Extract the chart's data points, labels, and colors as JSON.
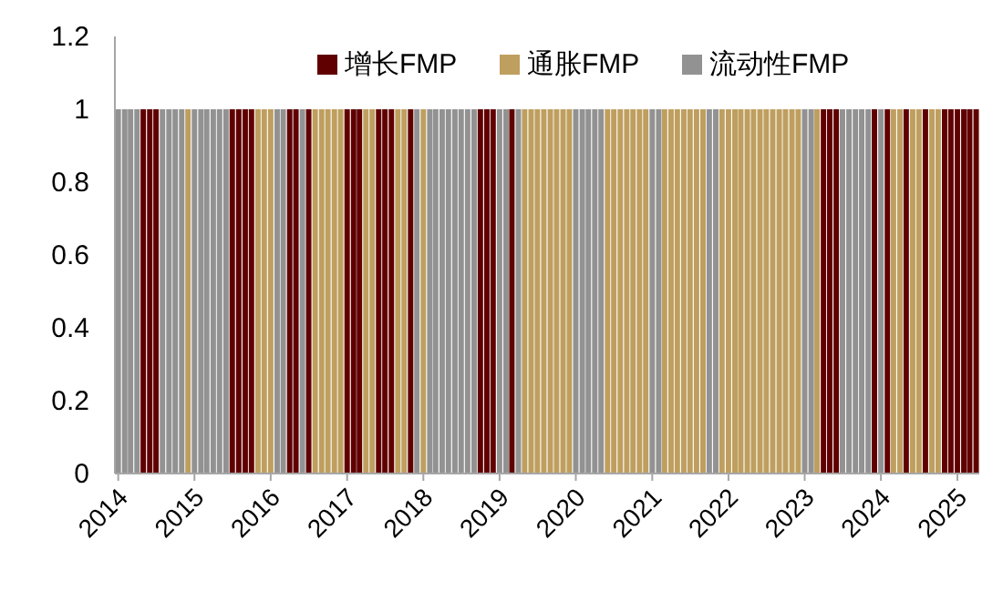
{
  "chart_data": {
    "type": "bar",
    "legend": "top",
    "x": [
      "2014-01",
      "2014-02",
      "2014-03",
      "2014-04",
      "2014-05",
      "2014-06",
      "2014-07",
      "2014-08",
      "2014-09",
      "2014-10",
      "2014-11",
      "2014-12",
      "2015-01",
      "2015-02",
      "2015-03",
      "2015-04",
      "2015-05",
      "2015-06",
      "2015-07",
      "2015-08",
      "2015-09",
      "2015-10",
      "2015-11",
      "2015-12",
      "2016-01",
      "2016-02",
      "2016-03",
      "2016-04",
      "2016-05",
      "2016-06",
      "2016-07",
      "2016-08",
      "2016-09",
      "2016-10",
      "2016-11",
      "2016-12",
      "2017-01",
      "2017-02",
      "2017-03",
      "2017-04",
      "2017-05",
      "2017-06",
      "2017-07",
      "2017-08",
      "2017-09",
      "2017-10",
      "2017-11",
      "2017-12",
      "2018-01",
      "2018-02",
      "2018-03",
      "2018-04",
      "2018-05",
      "2018-06",
      "2018-07",
      "2018-08",
      "2018-09",
      "2018-10",
      "2018-11",
      "2018-12",
      "2019-01",
      "2019-02",
      "2019-03",
      "2019-04",
      "2019-05",
      "2019-06",
      "2019-07",
      "2019-08",
      "2019-09",
      "2019-10",
      "2019-11",
      "2019-12",
      "2020-01",
      "2020-02",
      "2020-03",
      "2020-04",
      "2020-05",
      "2020-06",
      "2020-07",
      "2020-08",
      "2020-09",
      "2020-10",
      "2020-11",
      "2020-12",
      "2021-01",
      "2021-02",
      "2021-03",
      "2021-04",
      "2021-05",
      "2021-06",
      "2021-07",
      "2021-08",
      "2021-09",
      "2021-10",
      "2021-11",
      "2021-12",
      "2022-01",
      "2022-02",
      "2022-03",
      "2022-04",
      "2022-05",
      "2022-06",
      "2022-07",
      "2022-08",
      "2022-09",
      "2022-10",
      "2022-11",
      "2022-12",
      "2023-01",
      "2023-02",
      "2023-03",
      "2023-04",
      "2023-05",
      "2023-06",
      "2023-07",
      "2023-08",
      "2023-09",
      "2023-10",
      "2023-11",
      "2023-12",
      "2024-01",
      "2024-02",
      "2024-03",
      "2024-04",
      "2024-05",
      "2024-06",
      "2024-07",
      "2024-08",
      "2024-09",
      "2024-10",
      "2024-11",
      "2024-12",
      "2025-01",
      "2025-02",
      "2025-03",
      "2025-04"
    ],
    "series": [
      {
        "name": "增长FMP",
        "color": "#600000",
        "values": [
          null,
          null,
          null,
          null,
          1,
          1,
          1,
          null,
          null,
          null,
          null,
          null,
          null,
          null,
          null,
          null,
          null,
          null,
          1,
          1,
          1,
          1,
          null,
          null,
          null,
          null,
          null,
          1,
          1,
          null,
          1,
          null,
          null,
          null,
          null,
          null,
          1,
          1,
          1,
          null,
          null,
          1,
          1,
          1,
          null,
          null,
          1,
          null,
          null,
          null,
          null,
          null,
          null,
          null,
          null,
          null,
          null,
          1,
          1,
          1,
          null,
          null,
          1,
          null,
          null,
          null,
          null,
          null,
          null,
          null,
          null,
          null,
          null,
          null,
          null,
          null,
          null,
          null,
          null,
          null,
          null,
          null,
          null,
          null,
          null,
          null,
          null,
          null,
          null,
          null,
          null,
          null,
          null,
          null,
          null,
          null,
          null,
          null,
          null,
          null,
          null,
          null,
          null,
          null,
          null,
          null,
          null,
          null,
          null,
          null,
          null,
          1,
          1,
          1,
          null,
          null,
          null,
          null,
          null,
          1,
          null,
          1,
          null,
          null,
          1,
          null,
          null,
          1,
          null,
          null,
          1,
          1,
          1,
          1,
          1,
          1
        ]
      },
      {
        "name": "通胀FMP",
        "color": "#bf9f5f",
        "values": [
          null,
          null,
          null,
          null,
          null,
          null,
          null,
          null,
          null,
          null,
          null,
          1,
          null,
          null,
          null,
          null,
          null,
          null,
          null,
          null,
          null,
          null,
          1,
          1,
          1,
          null,
          null,
          null,
          null,
          null,
          null,
          1,
          1,
          1,
          1,
          1,
          null,
          null,
          null,
          1,
          1,
          null,
          null,
          null,
          1,
          1,
          null,
          null,
          1,
          null,
          null,
          null,
          null,
          null,
          null,
          null,
          null,
          null,
          null,
          null,
          null,
          null,
          null,
          null,
          1,
          1,
          1,
          1,
          1,
          1,
          1,
          1,
          null,
          null,
          null,
          null,
          null,
          1,
          1,
          1,
          1,
          1,
          1,
          1,
          null,
          null,
          1,
          1,
          1,
          1,
          1,
          1,
          1,
          null,
          null,
          1,
          1,
          1,
          1,
          1,
          1,
          1,
          1,
          1,
          1,
          1,
          1,
          1,
          null,
          null,
          1,
          null,
          null,
          null,
          null,
          null,
          null,
          null,
          null,
          null,
          null,
          null,
          1,
          1,
          null,
          1,
          1,
          null,
          1,
          1,
          null,
          null,
          null,
          null,
          null,
          null
        ]
      },
      {
        "name": "流动性FMP",
        "color": "#929292",
        "values": [
          1,
          1,
          1,
          1,
          null,
          null,
          null,
          1,
          1,
          1,
          1,
          null,
          1,
          1,
          1,
          1,
          1,
          1,
          null,
          null,
          null,
          null,
          null,
          null,
          null,
          1,
          1,
          null,
          null,
          1,
          null,
          null,
          null,
          null,
          null,
          null,
          null,
          null,
          null,
          null,
          null,
          null,
          null,
          null,
          null,
          null,
          null,
          1,
          null,
          1,
          1,
          1,
          1,
          1,
          1,
          1,
          1,
          null,
          null,
          null,
          1,
          1,
          null,
          1,
          null,
          null,
          null,
          null,
          null,
          null,
          null,
          null,
          1,
          1,
          1,
          1,
          1,
          null,
          null,
          null,
          null,
          null,
          null,
          null,
          1,
          1,
          null,
          null,
          null,
          null,
          null,
          null,
          null,
          1,
          1,
          null,
          null,
          null,
          null,
          null,
          null,
          null,
          null,
          null,
          null,
          null,
          null,
          null,
          1,
          1,
          null,
          null,
          null,
          null,
          1,
          1,
          1,
          1,
          1,
          null,
          1,
          null,
          null,
          null,
          null,
          null,
          null,
          null,
          null,
          null,
          null,
          null,
          null,
          null,
          null,
          null
        ]
      }
    ],
    "xlim": [
      "2013-12-16",
      "2025-04-16"
    ],
    "xticks": [
      "2014",
      "2015",
      "2016",
      "2017",
      "2018",
      "2019",
      "2020",
      "2021",
      "2022",
      "2023",
      "2024",
      "2025"
    ],
    "ylim": [
      0,
      1.2
    ],
    "yticks": [
      0,
      0.2,
      0.4,
      0.6,
      0.8,
      1,
      1.2
    ]
  }
}
